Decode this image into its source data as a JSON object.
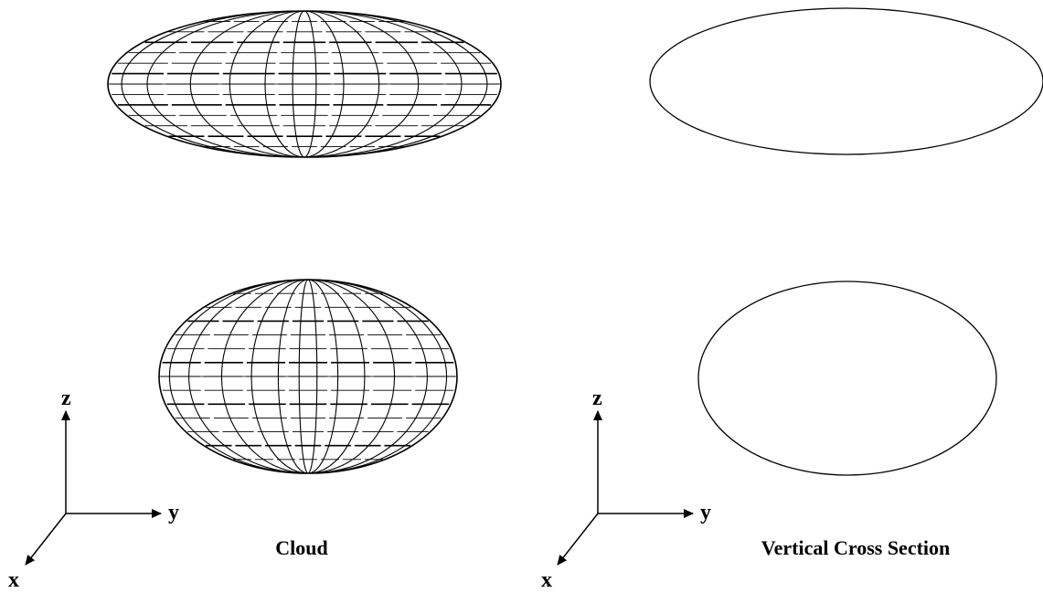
{
  "captions": {
    "cloud": "Cloud",
    "cross_section": "Vertical Cross Section"
  },
  "axes": {
    "z_label": "z",
    "y_label": "y",
    "x_label": "x"
  },
  "colors": {
    "stroke": "#000000",
    "background": "#ffffff"
  }
}
